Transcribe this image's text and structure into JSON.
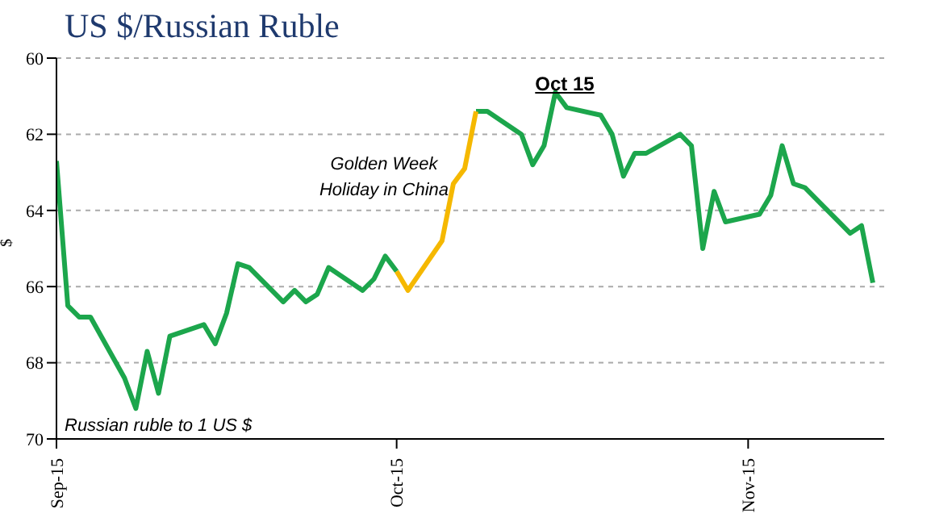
{
  "chart_data": {
    "type": "line",
    "title": "US $/Russian Ruble",
    "ylabel": "$",
    "annotations": [
      "Golden Week Holiday in China",
      "Oct 15",
      "Russian ruble to 1 US $"
    ],
    "x": [
      "--09-15",
      "--09-16",
      "--09-17",
      "--09-18",
      "--09-21",
      "--09-22",
      "--09-23",
      "--09-24",
      "--09-25",
      "--09-28",
      "--09-29",
      "--09-30",
      "--10-01",
      "--10-02",
      "--10-05",
      "--10-06",
      "--10-07",
      "--10-08",
      "--10-09",
      "--10-12",
      "--10-13",
      "--10-14",
      "--10-15",
      "--10-16",
      "--10-19",
      "--10-20",
      "--10-21",
      "--10-22",
      "--10-23",
      "--10-26",
      "--10-27",
      "--10-28",
      "--10-29",
      "--10-30",
      "--11-02",
      "--11-03",
      "--11-04",
      "--11-05",
      "--11-06",
      "--11-09",
      "--11-10",
      "--11-11",
      "--11-12",
      "--11-13",
      "--11-16",
      "--11-17",
      "--11-18",
      "--11-19",
      "--11-20",
      "--11-23",
      "--11-24",
      "--11-25",
      "--11-26"
    ],
    "series": [
      {
        "color": "#1ca64c",
        "values": [
          62.7,
          66.5,
          66.8,
          66.8,
          68.4,
          69.2,
          67.7,
          68.8,
          67.3,
          67.0,
          67.5,
          66.7,
          65.4,
          65.5,
          66.4,
          66.1,
          66.4,
          66.2,
          65.5,
          66.1,
          65.8,
          65.2,
          65.6,
          null,
          null,
          null,
          null,
          61.4,
          61.4,
          62.0,
          62.8,
          62.3,
          60.9,
          61.3,
          61.5,
          62.0,
          63.1,
          62.5,
          62.5,
          62.0,
          62.3,
          65.0,
          63.5,
          64.3,
          64.1,
          63.6,
          62.3,
          63.3,
          63.4,
          64.3,
          64.6,
          64.4,
          65.9
        ]
      },
      {
        "color": "#f5b800",
        "values": [
          null,
          null,
          null,
          null,
          null,
          null,
          null,
          null,
          null,
          null,
          null,
          null,
          null,
          null,
          null,
          null,
          null,
          null,
          null,
          null,
          null,
          null,
          65.6,
          66.1,
          64.8,
          63.3,
          62.9,
          61.4,
          null,
          null,
          null,
          null,
          null,
          null,
          null,
          null,
          null,
          null,
          null,
          null,
          null,
          null,
          null,
          null,
          null,
          null,
          null,
          null,
          null,
          null,
          null,
          null,
          null
        ]
      }
    ],
    "xlim": [
      "--09-15",
      "--11-27"
    ],
    "xticks": [
      {
        "value": "--09-15",
        "label": "Sep-15"
      },
      {
        "value": "--10-15",
        "label": "Oct-15"
      },
      {
        "value": "--11-15",
        "label": "Nov-15"
      }
    ],
    "ylim": [
      70,
      60
    ],
    "yticks": [
      60,
      62,
      64,
      66,
      68,
      70
    ],
    "grid": "y",
    "marker": "none",
    "line_style": "solid"
  }
}
